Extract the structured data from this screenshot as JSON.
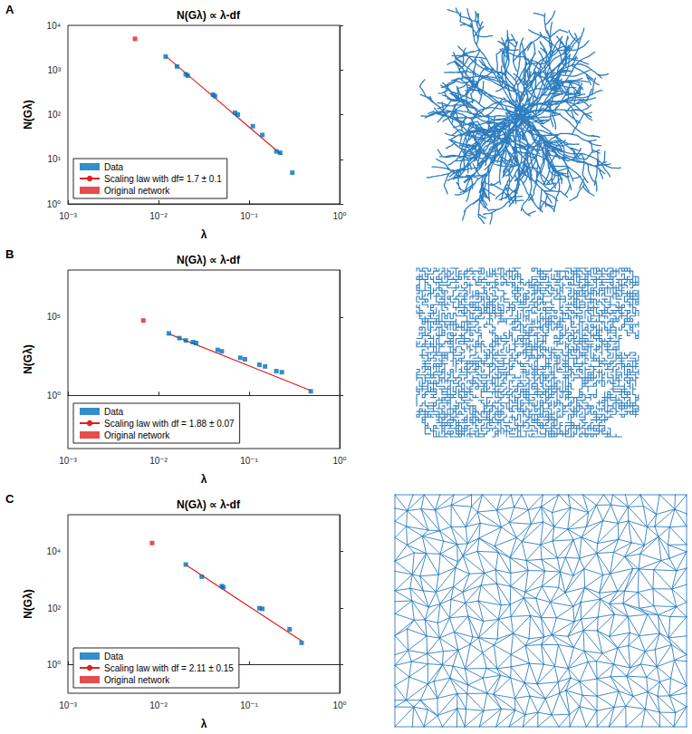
{
  "chart_data": [
    {
      "panel": "A",
      "type": "scatter",
      "title": "N(Gλ) ∝ λ-df",
      "x_label": "λ",
      "y_label": "N(Gλ)",
      "log": true,
      "grid": false,
      "legend": "lower left",
      "xlim": [
        0.001,
        1
      ],
      "ylim": [
        1,
        10000
      ],
      "xticks": [
        {
          "value": 0.001,
          "label": "10⁻³"
        },
        {
          "value": 0.01,
          "label": "10⁻²"
        },
        {
          "value": 0.1,
          "label": "10⁻¹"
        },
        {
          "value": 1,
          "label": "10⁰"
        }
      ],
      "yticks": [
        {
          "value": 1,
          "label": "10⁰"
        },
        {
          "value": 10,
          "label": "10¹"
        },
        {
          "value": 100,
          "label": "10²"
        },
        {
          "value": 1000,
          "label": "10³"
        },
        {
          "value": 10000,
          "label": "10⁴"
        }
      ],
      "series": [
        {
          "name": "Data",
          "type": "scatter",
          "color": "#0072bd",
          "marker": "square",
          "x": [
            0.012,
            0.016,
            0.02,
            0.021,
            0.04,
            0.042,
            0.07,
            0.075,
            0.11,
            0.14,
            0.2,
            0.22,
            0.3
          ],
          "values": [
            2000,
            1200,
            800,
            750,
            280,
            260,
            110,
            100,
            55,
            35,
            15,
            14,
            5
          ]
        },
        {
          "name": "Scaling law with df= 1.7 ± 0.1",
          "type": "line",
          "color": "#e02020",
          "line_style": "solid",
          "x": [
            0.012,
            0.23
          ],
          "values": [
            2050,
            12.5
          ]
        },
        {
          "name": "Original network",
          "type": "scatter",
          "color": "#e02020",
          "marker": "square",
          "x": [
            0.0055
          ],
          "values": [
            5000
          ]
        }
      ]
    },
    {
      "panel": "B",
      "type": "scatter",
      "title": "N(Gλ) ∝ λ-df",
      "x_label": "λ",
      "y_label": "N(Gλ)",
      "log": true,
      "grid": false,
      "legend": "lower left",
      "xlim": [
        0.001,
        1
      ],
      "ylim": [
        0.0004,
        100000000
      ],
      "xticks": [
        {
          "value": 0.001,
          "label": "10⁻³"
        },
        {
          "value": 0.01,
          "label": "10⁻²"
        },
        {
          "value": 0.1,
          "label": "10⁻¹"
        },
        {
          "value": 1,
          "label": "10⁰"
        }
      ],
      "yticks": [
        {
          "value": 1,
          "label": "10⁰"
        },
        {
          "value": 100000,
          "label": "10⁵"
        }
      ],
      "series": [
        {
          "name": "Data",
          "type": "scatter",
          "color": "#0072bd",
          "marker": "square",
          "x": [
            0.013,
            0.017,
            0.02,
            0.024,
            0.026,
            0.045,
            0.05,
            0.08,
            0.09,
            0.13,
            0.15,
            0.2,
            0.23,
            0.48
          ],
          "values": [
            9000,
            4500,
            3200,
            2500,
            2200,
            800,
            650,
            250,
            200,
            90,
            70,
            35,
            30,
            1.8
          ]
        },
        {
          "name": "Scaling law with df = 1.88 ± 0.07",
          "type": "line",
          "color": "#e02020",
          "line_style": "solid",
          "x": [
            0.013,
            0.48
          ],
          "values": [
            8500,
            2
          ]
        },
        {
          "name": "Original network",
          "type": "scatter",
          "color": "#e02020",
          "marker": "square",
          "x": [
            0.0068
          ],
          "values": [
            60000
          ]
        }
      ]
    },
    {
      "panel": "C",
      "type": "scatter",
      "title": "N(Gλ) ∝ λ-df",
      "x_label": "λ",
      "y_label": "N(Gλ)",
      "log": true,
      "grid": false,
      "legend": "lower left",
      "xlim": [
        0.001,
        1
      ],
      "ylim": [
        0.1,
        200000
      ],
      "xticks": [
        {
          "value": 0.001,
          "label": "10⁻³"
        },
        {
          "value": 0.01,
          "label": "10⁻²"
        },
        {
          "value": 0.1,
          "label": "10⁻¹"
        },
        {
          "value": 1,
          "label": "10⁰"
        }
      ],
      "yticks": [
        {
          "value": 1,
          "label": "10⁰"
        },
        {
          "value": 100,
          "label": "10²"
        },
        {
          "value": 10000,
          "label": "10⁴"
        }
      ],
      "series": [
        {
          "name": "Data",
          "type": "scatter",
          "color": "#0072bd",
          "marker": "square",
          "x": [
            0.02,
            0.03,
            0.05,
            0.052,
            0.13,
            0.14,
            0.28,
            0.38
          ],
          "values": [
            3500,
            1300,
            600,
            550,
            100,
            95,
            18,
            6
          ]
        },
        {
          "name": "Scaling law with df = 2.11 ± 0.15",
          "type": "line",
          "color": "#e02020",
          "line_style": "solid",
          "x": [
            0.02,
            0.38
          ],
          "values": [
            3400,
            7
          ]
        },
        {
          "name": "Original network",
          "type": "scatter",
          "color": "#e02020",
          "marker": "square",
          "x": [
            0.0085
          ],
          "values": [
            20000
          ]
        }
      ]
    }
  ]
}
